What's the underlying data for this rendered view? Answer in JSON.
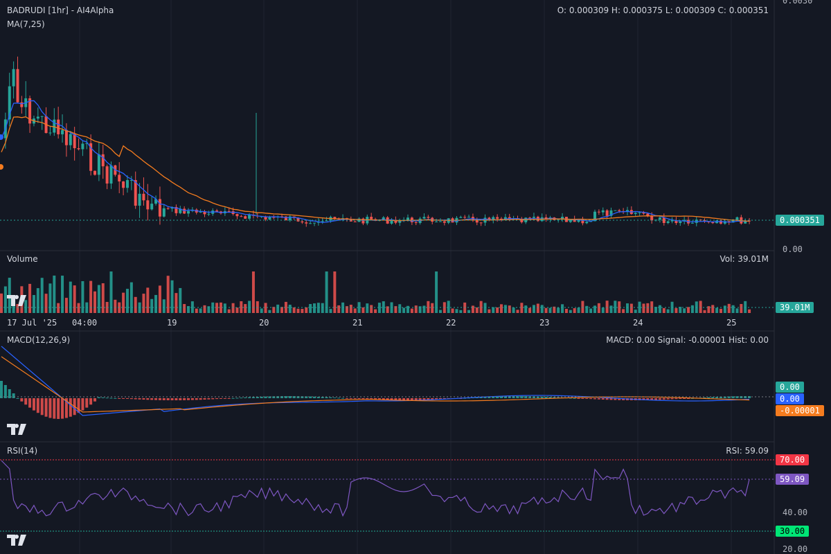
{
  "header": {
    "title": "BADRUDI [1hr] - AI4Alpha",
    "ohlc": "O: 0.000309 H: 0.000375 L: 0.000309 C: 0.000351",
    "ma_label": "MA(7,25)"
  },
  "price_axis": {
    "top_label": "0.0030",
    "zero_label": "0.00",
    "current_tag": "0.000351"
  },
  "volume": {
    "label": "Volume",
    "value_text": "Vol: 39.01M",
    "tag": "39.01M"
  },
  "time_axis": [
    "17 Jul '25",
    "04:00",
    "19",
    "20",
    "21",
    "22",
    "23",
    "24",
    "25"
  ],
  "macd": {
    "label": "MACD(12,26,9)",
    "value_text": "MACD: 0.00 Signal: -0.00001 Hist: 0.00",
    "tags": {
      "hist": "0.00",
      "macd": "0.00",
      "signal": "-0.00001"
    }
  },
  "rsi": {
    "label": "RSI(14)",
    "value_text": "RSI: 59.09",
    "tags": {
      "upper": "70.00",
      "current": "59.09",
      "lower": "30.00"
    },
    "axis_labels": [
      "40.00",
      "20.00"
    ]
  },
  "colors": {
    "background": "#141823",
    "up": "#26a69a",
    "down": "#ef5350",
    "ma7": "#2962ff",
    "ma25": "#f57c1f",
    "rsi": "#7e57c2",
    "overbought": "#f23645",
    "oversold": "#22ab94"
  },
  "chart_data": {
    "type": "line",
    "title": "BADRUDI [1hr] - AI4Alpha",
    "x": [
      "17 Jul '25",
      "04:00",
      "19",
      "20",
      "21",
      "22",
      "23",
      "24",
      "25"
    ],
    "series": [
      {
        "name": "MA(7,25)",
        "values": [
          0.00135,
          0.00085,
          0.00042,
          0.00038,
          0.00029,
          0.00033,
          0.00031,
          0.00038,
          0.00035
        ]
      }
    ],
    "price_close_last": 0.000351,
    "volume_last": "39.01M",
    "macd_last": {
      "macd": 0.0,
      "signal": -1e-05,
      "hist": 0.0
    },
    "rsi_last": 59.09,
    "rsi_levels": [
      70,
      30
    ],
    "ylim": [
      0,
      0.003
    ]
  }
}
